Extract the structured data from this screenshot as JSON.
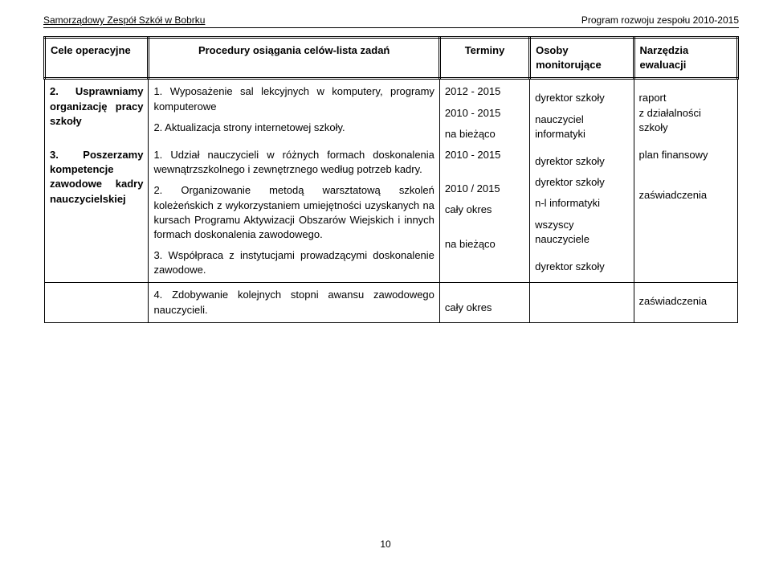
{
  "header": {
    "left": "Samorządowy Zespół Szkół w Bobrku",
    "right": "Program rozwoju zespołu 2010-2015"
  },
  "table": {
    "headers": {
      "col1": "Cele operacyjne",
      "col2": "Procedury osiągania celów-lista zadań",
      "col3": "Terminy",
      "col4": "Osoby monitorujące",
      "col5": "Narzędzia ewaluacji"
    },
    "row1": {
      "col1a": "2. Usprawniamy organizację pracy szkoły",
      "col1b": "3. Poszerzamy kompetencje zawodowe kadry nauczycielskiej",
      "col2_p1": "1. Wyposażenie sal lekcyjnych w komputery, programy komputerowe",
      "col2_p2": "2. Aktualizacja strony internetowej szkoły.",
      "col2_p3": "1. Udział nauczycieli w różnych formach doskonalenia wewnątrzszkolnego i zewnętrznego według potrzeb kadry.",
      "col2_p4": "2. Organizowanie metodą warsztatową szkoleń koleżeńskich z wykorzystaniem umiejętności uzyskanych na kursach Programu Aktywizacji Obszarów Wiejskich i innych formach doskonalenia zawodowego.",
      "col2_p5": "3. Współpraca z instytucjami prowadzącymi doskonalenie zawodowe.",
      "col3_t1": "2012 - 2015",
      "col3_t2": "2010 - 2015",
      "col3_t3": "na bieżąco",
      "col3_t4": "2010 - 2015",
      "col3_t5": "2010 / 2015",
      "col3_t6": "cały okres",
      "col3_t7": "na bieżąco",
      "col4_m1": "dyrektor szkoły",
      "col4_m2": "nauczyciel informatyki",
      "col4_m3": "dyrektor szkoły",
      "col4_m4": "dyrektor szkoły",
      "col4_m5": "n-l informatyki",
      "col4_m6": "wszyscy nauczyciele",
      "col4_m7": "dyrektor szkoły",
      "col5_e1": "raport",
      "col5_e2": "z działalności szkoły",
      "col5_e3": "plan finansowy",
      "col5_e4": "zaświadczenia"
    },
    "row2": {
      "col2": "4. Zdobywanie kolejnych stopni awansu zawodowego nauczycieli.",
      "col3": "cały okres",
      "col5": "zaświadczenia"
    }
  },
  "page_number": "10"
}
